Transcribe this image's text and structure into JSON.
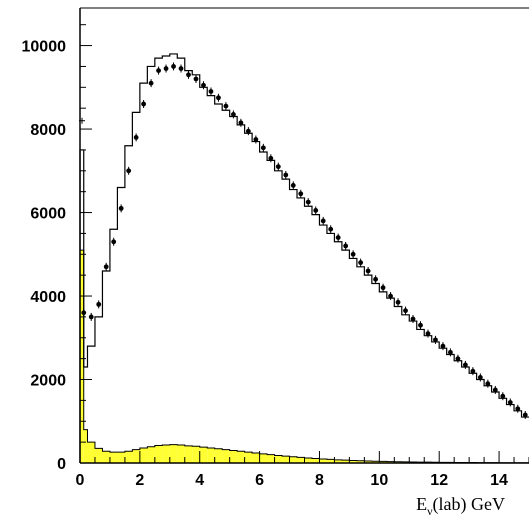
{
  "chart_data": {
    "type": "histogram",
    "title": "",
    "xlabel": "E",
    "xlabel_sub": "ν",
    "xlabel_rest": "(lab) GeV",
    "ylabel": "",
    "xlim": [
      0,
      15
    ],
    "ylim": [
      0,
      10900
    ],
    "x_ticks": [
      0,
      2,
      4,
      6,
      8,
      10,
      12,
      14
    ],
    "y_ticks": [
      0,
      2000,
      4000,
      6000,
      8000,
      10000
    ],
    "grid": false,
    "legend": "none",
    "colors": {
      "fill": "#ffff33",
      "line": "#000000",
      "marker": "#000000"
    },
    "bin_width": 0.25,
    "series": [
      {
        "kind": "step",
        "bin_edges": [
          0,
          0.125,
          0.25,
          0.5,
          0.75,
          1.0,
          1.25,
          1.5,
          1.75,
          2.0,
          2.25,
          2.5,
          2.75,
          3.0,
          3.25,
          3.5,
          3.75,
          4.0,
          4.25,
          4.5,
          4.75,
          5.0,
          5.25,
          5.5,
          5.75,
          6.0,
          6.25,
          6.5,
          6.75,
          7.0,
          7.25,
          7.5,
          7.75,
          8.0,
          8.25,
          8.5,
          8.75,
          9.0,
          9.25,
          9.5,
          9.75,
          10.0,
          10.25,
          10.5,
          10.75,
          11.0,
          11.25,
          11.5,
          11.75,
          12.0,
          12.25,
          12.5,
          12.75,
          13.0,
          13.25,
          13.5,
          13.75,
          14.0,
          14.25,
          14.5,
          14.75,
          15.0
        ],
        "values": [
          7500,
          2300,
          2800,
          3500,
          4600,
          5600,
          6600,
          7600,
          8400,
          9100,
          9500,
          9700,
          9750,
          9800,
          9700,
          9400,
          9300,
          9000,
          8800,
          8600,
          8450,
          8300,
          8100,
          7900,
          7700,
          7450,
          7250,
          7000,
          6800,
          6550,
          6350,
          6150,
          5950,
          5700,
          5500,
          5300,
          5100,
          4900,
          4700,
          4500,
          4300,
          4100,
          3950,
          3750,
          3550,
          3400,
          3200,
          3050,
          2900,
          2750,
          2600,
          2450,
          2300,
          2150,
          2000,
          1850,
          1700,
          1550,
          1400,
          1250,
          1100
        ]
      },
      {
        "kind": "points",
        "x": [
          0.125,
          0.375,
          0.625,
          0.875,
          1.125,
          1.375,
          1.625,
          1.875,
          2.125,
          2.375,
          2.625,
          2.875,
          3.125,
          3.375,
          3.625,
          3.875,
          4.125,
          4.375,
          4.625,
          4.875,
          5.125,
          5.375,
          5.625,
          5.875,
          6.125,
          6.375,
          6.625,
          6.875,
          7.125,
          7.375,
          7.625,
          7.875,
          8.125,
          8.375,
          8.625,
          8.875,
          9.125,
          9.375,
          9.625,
          9.875,
          10.125,
          10.375,
          10.625,
          10.875,
          11.125,
          11.375,
          11.625,
          11.875,
          12.125,
          12.375,
          12.625,
          12.875,
          13.125,
          13.375,
          13.625,
          13.875,
          14.125,
          14.375,
          14.625,
          14.875
        ],
        "y": [
          3600,
          3500,
          3800,
          4700,
          5300,
          6100,
          7000,
          7800,
          8600,
          9100,
          9400,
          9450,
          9500,
          9450,
          9300,
          9200,
          9050,
          8900,
          8750,
          8550,
          8350,
          8150,
          7950,
          7750,
          7550,
          7300,
          7100,
          6900,
          6650,
          6450,
          6250,
          6050,
          5800,
          5600,
          5400,
          5200,
          5000,
          4800,
          4600,
          4400,
          4200,
          4000,
          3850,
          3650,
          3450,
          3300,
          3100,
          2950,
          2800,
          2650,
          2500,
          2350,
          2200,
          2050,
          1900,
          1750,
          1600,
          1450,
          1300,
          1150
        ]
      },
      {
        "kind": "filled_step",
        "bin_edges": [
          0,
          0.125,
          0.25,
          0.5,
          0.75,
          1.0,
          1.25,
          1.5,
          1.75,
          2.0,
          2.25,
          2.5,
          2.75,
          3.0,
          3.25,
          3.5,
          3.75,
          4.0,
          4.25,
          4.5,
          4.75,
          5.0,
          5.25,
          5.5,
          5.75,
          6.0,
          6.25,
          6.5,
          6.75,
          7.0,
          7.25,
          7.5,
          7.75,
          8.0,
          8.25,
          8.5,
          8.75,
          9.0,
          9.25,
          9.5,
          9.75,
          10.0,
          10.25,
          10.5,
          10.75,
          11.0,
          11.25,
          11.5,
          11.75,
          12.0,
          12.25,
          12.5,
          12.75,
          13.0,
          13.25,
          13.5,
          13.75,
          14.0,
          14.25,
          14.5,
          14.75,
          15.0
        ],
        "values": [
          5100,
          800,
          500,
          350,
          280,
          260,
          260,
          280,
          320,
          360,
          390,
          420,
          430,
          440,
          430,
          410,
          400,
          380,
          360,
          340,
          320,
          300,
          280,
          260,
          240,
          220,
          200,
          180,
          165,
          150,
          135,
          120,
          108,
          96,
          86,
          76,
          68,
          60,
          54,
          48,
          42,
          38,
          34,
          30,
          27,
          24,
          22,
          20,
          18,
          16,
          14,
          13,
          12,
          11,
          10,
          9,
          8,
          7,
          6,
          6,
          5
        ]
      },
      {
        "kind": "marker",
        "x": [
          0.0
        ],
        "y": [
          8200
        ]
      }
    ]
  }
}
